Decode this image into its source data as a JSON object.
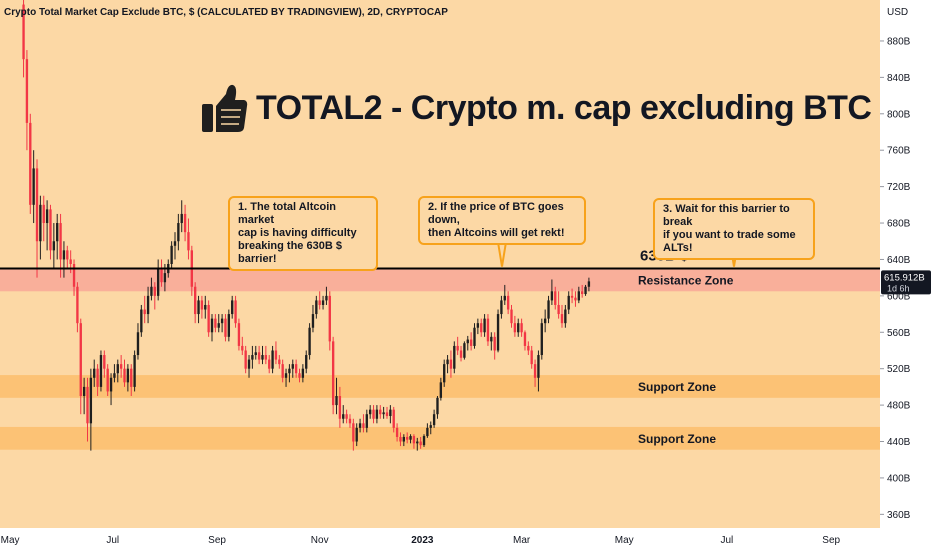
{
  "header": {
    "symbol_line": "Crypto Total Market Cap Exclude BTC, $ (CALCULATED BY TRADINGVIEW), 2D, CRYPTOCAP"
  },
  "headline": {
    "icon": "thumbs-up-icon",
    "text": "TOTAL2 - Crypto m. cap excluding BTC"
  },
  "callouts": [
    {
      "text": "1. The total Altcoin market\ncap is having difficulty\nbreaking the 630B $ barrier!"
    },
    {
      "text": "2. If the price of BTC goes down,\nthen Altcoins will get rekt!"
    },
    {
      "text": "3. Wait for this barrier to break\nif you want to trade some ALTs!"
    }
  ],
  "price_axis": {
    "currency": "USD",
    "last_price": "615.912B",
    "countdown": "1d 6h"
  },
  "colors": {
    "background": "#fcd8a5",
    "resistance_band": "#f8a898",
    "support_band": "#fcbe6c",
    "bull_candle": "#1f1f1f",
    "bear_candle": "#f23645",
    "callout_border": "#f7a21b"
  },
  "chart_data": {
    "type": "candlestick",
    "title": "Crypto Total Market Cap Exclude BTC, $ (CALCULATED BY TRADINGVIEW), 2D, CRYPTOCAP",
    "ylim": [
      345,
      925
    ],
    "y_ticks": [
      {
        "value": 360,
        "label": "360B"
      },
      {
        "value": 400,
        "label": "400B"
      },
      {
        "value": 440,
        "label": "440B"
      },
      {
        "value": 480,
        "label": "480B"
      },
      {
        "value": 520,
        "label": "520B"
      },
      {
        "value": 560,
        "label": "560B"
      },
      {
        "value": 600,
        "label": "600B"
      },
      {
        "value": 640,
        "label": "640B"
      },
      {
        "value": 680,
        "label": "680B"
      },
      {
        "value": 720,
        "label": "720B"
      },
      {
        "value": 760,
        "label": "760B"
      },
      {
        "value": 800,
        "label": "800B"
      },
      {
        "value": 840,
        "label": "840B"
      },
      {
        "value": 880,
        "label": "880B"
      }
    ],
    "x_ticks": [
      {
        "date": "2022-05-01",
        "label": "May",
        "bold": false
      },
      {
        "date": "2022-07-01",
        "label": "Jul",
        "bold": false
      },
      {
        "date": "2022-09-01",
        "label": "Sep",
        "bold": false
      },
      {
        "date": "2022-11-01",
        "label": "Nov",
        "bold": false
      },
      {
        "date": "2023-01-01",
        "label": "2023",
        "bold": true
      },
      {
        "date": "2023-03-01",
        "label": "Mar",
        "bold": false
      },
      {
        "date": "2023-05-01",
        "label": "May",
        "bold": false
      },
      {
        "date": "2023-07-01",
        "label": "Jul",
        "bold": false
      },
      {
        "date": "2023-09-01",
        "label": "Sep",
        "bold": false
      }
    ],
    "xlim": [
      "2022-04-25",
      "2023-09-30"
    ],
    "resistance_line": {
      "value": 630,
      "label": "630B $"
    },
    "zones": [
      {
        "name": "Resistance Zone",
        "low": 605,
        "high": 630,
        "kind": "resistance"
      },
      {
        "name": "Support Zone",
        "low": 488,
        "high": 513,
        "kind": "support"
      },
      {
        "name": "Support Zone",
        "low": 431,
        "high": 456,
        "kind": "support"
      }
    ],
    "last_price": 615.912,
    "candles": [
      [
        "2022-05-09",
        920,
        925,
        840,
        860
      ],
      [
        "2022-05-11",
        860,
        870,
        760,
        790
      ],
      [
        "2022-05-13",
        790,
        800,
        690,
        700
      ],
      [
        "2022-05-15",
        700,
        760,
        680,
        740
      ],
      [
        "2022-05-17",
        740,
        750,
        620,
        660
      ],
      [
        "2022-05-19",
        660,
        710,
        640,
        700
      ],
      [
        "2022-05-21",
        700,
        710,
        660,
        680
      ],
      [
        "2022-05-23",
        680,
        705,
        650,
        695
      ],
      [
        "2022-05-25",
        695,
        700,
        640,
        650
      ],
      [
        "2022-05-27",
        650,
        680,
        630,
        660
      ],
      [
        "2022-05-29",
        660,
        690,
        640,
        680
      ],
      [
        "2022-05-31",
        680,
        690,
        620,
        640
      ],
      [
        "2022-06-02",
        640,
        660,
        620,
        650
      ],
      [
        "2022-06-04",
        650,
        655,
        630,
        640
      ],
      [
        "2022-06-06",
        640,
        650,
        625,
        635
      ],
      [
        "2022-06-08",
        635,
        640,
        600,
        610
      ],
      [
        "2022-06-10",
        610,
        615,
        560,
        570
      ],
      [
        "2022-06-12",
        570,
        575,
        470,
        490
      ],
      [
        "2022-06-14",
        490,
        510,
        470,
        500
      ],
      [
        "2022-06-16",
        500,
        510,
        440,
        460
      ],
      [
        "2022-06-18",
        460,
        520,
        430,
        510
      ],
      [
        "2022-06-20",
        510,
        530,
        500,
        520
      ],
      [
        "2022-06-22",
        520,
        525,
        490,
        500
      ],
      [
        "2022-06-24",
        500,
        540,
        495,
        535
      ],
      [
        "2022-06-26",
        535,
        540,
        510,
        520
      ],
      [
        "2022-06-28",
        520,
        525,
        490,
        495
      ],
      [
        "2022-06-30",
        495,
        515,
        480,
        510
      ],
      [
        "2022-07-02",
        510,
        525,
        505,
        515
      ],
      [
        "2022-07-04",
        515,
        530,
        505,
        525
      ],
      [
        "2022-07-06",
        525,
        535,
        510,
        520
      ],
      [
        "2022-07-08",
        520,
        530,
        500,
        505
      ],
      [
        "2022-07-10",
        505,
        525,
        495,
        520
      ],
      [
        "2022-07-12",
        520,
        525,
        490,
        500
      ],
      [
        "2022-07-14",
        500,
        540,
        495,
        535
      ],
      [
        "2022-07-16",
        535,
        570,
        530,
        560
      ],
      [
        "2022-07-18",
        560,
        590,
        555,
        585
      ],
      [
        "2022-07-20",
        585,
        600,
        570,
        580
      ],
      [
        "2022-07-22",
        580,
        610,
        570,
        600
      ],
      [
        "2022-07-24",
        600,
        620,
        595,
        610
      ],
      [
        "2022-07-26",
        610,
        615,
        585,
        600
      ],
      [
        "2022-07-28",
        600,
        640,
        595,
        630
      ],
      [
        "2022-07-30",
        630,
        640,
        610,
        615
      ],
      [
        "2022-08-01",
        615,
        635,
        605,
        625
      ],
      [
        "2022-08-03",
        625,
        640,
        620,
        635
      ],
      [
        "2022-08-05",
        635,
        660,
        630,
        655
      ],
      [
        "2022-08-07",
        655,
        670,
        640,
        660
      ],
      [
        "2022-08-09",
        660,
        690,
        650,
        680
      ],
      [
        "2022-08-11",
        680,
        705,
        670,
        690
      ],
      [
        "2022-08-13",
        690,
        700,
        660,
        670
      ],
      [
        "2022-08-15",
        670,
        685,
        640,
        650
      ],
      [
        "2022-08-17",
        650,
        655,
        600,
        610
      ],
      [
        "2022-08-19",
        610,
        615,
        570,
        580
      ],
      [
        "2022-08-21",
        580,
        600,
        570,
        595
      ],
      [
        "2022-08-23",
        595,
        600,
        575,
        585
      ],
      [
        "2022-08-25",
        585,
        600,
        575,
        590
      ],
      [
        "2022-08-27",
        590,
        595,
        555,
        560
      ],
      [
        "2022-08-29",
        560,
        580,
        550,
        575
      ],
      [
        "2022-08-31",
        575,
        580,
        560,
        565
      ],
      [
        "2022-09-02",
        565,
        580,
        560,
        570
      ],
      [
        "2022-09-04",
        570,
        580,
        560,
        575
      ],
      [
        "2022-09-06",
        575,
        580,
        550,
        555
      ],
      [
        "2022-09-08",
        555,
        585,
        550,
        580
      ],
      [
        "2022-09-10",
        580,
        600,
        575,
        595
      ],
      [
        "2022-09-12",
        595,
        600,
        565,
        570
      ],
      [
        "2022-09-14",
        570,
        575,
        540,
        545
      ],
      [
        "2022-09-16",
        545,
        555,
        535,
        540
      ],
      [
        "2022-09-18",
        540,
        545,
        515,
        520
      ],
      [
        "2022-09-20",
        520,
        535,
        510,
        530
      ],
      [
        "2022-09-22",
        530,
        545,
        520,
        535
      ],
      [
        "2022-09-24",
        535,
        545,
        530,
        538
      ],
      [
        "2022-09-26",
        538,
        545,
        525,
        530
      ],
      [
        "2022-09-28",
        530,
        545,
        525,
        535
      ],
      [
        "2022-09-30",
        535,
        545,
        525,
        530
      ],
      [
        "2022-10-02",
        530,
        535,
        515,
        520
      ],
      [
        "2022-10-04",
        520,
        545,
        515,
        540
      ],
      [
        "2022-10-06",
        540,
        550,
        525,
        530
      ],
      [
        "2022-10-08",
        530,
        535,
        520,
        525
      ],
      [
        "2022-10-10",
        525,
        530,
        505,
        510
      ],
      [
        "2022-10-12",
        510,
        520,
        500,
        515
      ],
      [
        "2022-10-14",
        515,
        525,
        505,
        520
      ],
      [
        "2022-10-16",
        520,
        530,
        510,
        525
      ],
      [
        "2022-10-18",
        525,
        530,
        510,
        515
      ],
      [
        "2022-10-20",
        515,
        520,
        505,
        510
      ],
      [
        "2022-10-22",
        510,
        525,
        505,
        520
      ],
      [
        "2022-10-24",
        520,
        540,
        515,
        535
      ],
      [
        "2022-10-26",
        535,
        570,
        530,
        565
      ],
      [
        "2022-10-28",
        565,
        590,
        560,
        580
      ],
      [
        "2022-10-30",
        580,
        600,
        575,
        595
      ],
      [
        "2022-11-01",
        595,
        605,
        585,
        590
      ],
      [
        "2022-11-03",
        590,
        600,
        585,
        595
      ],
      [
        "2022-11-05",
        595,
        610,
        590,
        600
      ],
      [
        "2022-11-07",
        600,
        605,
        540,
        550
      ],
      [
        "2022-11-09",
        550,
        555,
        470,
        480
      ],
      [
        "2022-11-11",
        480,
        510,
        470,
        490
      ],
      [
        "2022-11-13",
        490,
        500,
        455,
        465
      ],
      [
        "2022-11-15",
        465,
        480,
        460,
        470
      ],
      [
        "2022-11-17",
        470,
        475,
        460,
        465
      ],
      [
        "2022-11-19",
        465,
        470,
        455,
        460
      ],
      [
        "2022-11-21",
        460,
        465,
        430,
        440
      ],
      [
        "2022-11-23",
        440,
        460,
        435,
        455
      ],
      [
        "2022-11-25",
        455,
        465,
        450,
        460
      ],
      [
        "2022-11-27",
        460,
        470,
        450,
        455
      ],
      [
        "2022-11-29",
        455,
        475,
        450,
        470
      ],
      [
        "2022-12-01",
        470,
        480,
        465,
        475
      ],
      [
        "2022-12-03",
        475,
        480,
        460,
        465
      ],
      [
        "2022-12-05",
        465,
        480,
        460,
        475
      ],
      [
        "2022-12-07",
        475,
        480,
        465,
        470
      ],
      [
        "2022-12-09",
        470,
        478,
        465,
        472
      ],
      [
        "2022-12-11",
        472,
        478,
        465,
        468
      ],
      [
        "2022-12-13",
        468,
        480,
        460,
        475
      ],
      [
        "2022-12-15",
        475,
        478,
        450,
        455
      ],
      [
        "2022-12-17",
        455,
        460,
        440,
        445
      ],
      [
        "2022-12-19",
        445,
        450,
        435,
        440
      ],
      [
        "2022-12-21",
        440,
        448,
        435,
        445
      ],
      [
        "2022-12-23",
        445,
        450,
        438,
        442
      ],
      [
        "2022-12-25",
        442,
        448,
        438,
        446
      ],
      [
        "2022-12-27",
        446,
        448,
        432,
        438
      ],
      [
        "2022-12-29",
        438,
        444,
        430,
        440
      ],
      [
        "2022-12-31",
        440,
        445,
        432,
        436
      ],
      [
        "2023-01-02",
        436,
        448,
        434,
        446
      ],
      [
        "2023-01-04",
        446,
        460,
        444,
        455
      ],
      [
        "2023-01-06",
        455,
        462,
        448,
        458
      ],
      [
        "2023-01-08",
        458,
        475,
        455,
        470
      ],
      [
        "2023-01-10",
        470,
        490,
        465,
        488
      ],
      [
        "2023-01-12",
        488,
        510,
        485,
        505
      ],
      [
        "2023-01-14",
        505,
        530,
        500,
        525
      ],
      [
        "2023-01-16",
        525,
        535,
        515,
        530
      ],
      [
        "2023-01-18",
        530,
        540,
        510,
        520
      ],
      [
        "2023-01-20",
        520,
        550,
        515,
        545
      ],
      [
        "2023-01-22",
        545,
        555,
        535,
        540
      ],
      [
        "2023-01-24",
        540,
        545,
        528,
        532
      ],
      [
        "2023-01-26",
        532,
        550,
        530,
        548
      ],
      [
        "2023-01-28",
        548,
        556,
        540,
        552
      ],
      [
        "2023-01-30",
        552,
        560,
        540,
        545
      ],
      [
        "2023-02-01",
        545,
        570,
        542,
        565
      ],
      [
        "2023-02-03",
        565,
        575,
        558,
        570
      ],
      [
        "2023-02-05",
        570,
        575,
        555,
        560
      ],
      [
        "2023-02-07",
        560,
        580,
        555,
        575
      ],
      [
        "2023-02-09",
        575,
        580,
        545,
        550
      ],
      [
        "2023-02-11",
        550,
        560,
        540,
        555
      ],
      [
        "2023-02-13",
        555,
        560,
        530,
        540
      ],
      [
        "2023-02-15",
        540,
        585,
        538,
        580
      ],
      [
        "2023-02-17",
        580,
        600,
        575,
        595
      ],
      [
        "2023-02-19",
        595,
        612,
        590,
        600
      ],
      [
        "2023-02-21",
        600,
        605,
        580,
        585
      ],
      [
        "2023-02-23",
        585,
        590,
        565,
        570
      ],
      [
        "2023-02-25",
        570,
        578,
        555,
        560
      ],
      [
        "2023-02-27",
        560,
        575,
        555,
        570
      ],
      [
        "2023-03-01",
        570,
        575,
        555,
        560
      ],
      [
        "2023-03-03",
        560,
        562,
        540,
        545
      ],
      [
        "2023-03-05",
        545,
        550,
        535,
        540
      ],
      [
        "2023-03-07",
        540,
        545,
        520,
        525
      ],
      [
        "2023-03-09",
        525,
        530,
        500,
        510
      ],
      [
        "2023-03-11",
        510,
        540,
        495,
        535
      ],
      [
        "2023-03-13",
        535,
        575,
        530,
        570
      ],
      [
        "2023-03-15",
        570,
        585,
        560,
        575
      ],
      [
        "2023-03-17",
        575,
        600,
        570,
        595
      ],
      [
        "2023-03-19",
        595,
        618,
        590,
        605
      ],
      [
        "2023-03-21",
        605,
        610,
        585,
        590
      ],
      [
        "2023-03-23",
        590,
        605,
        575,
        580
      ],
      [
        "2023-03-25",
        580,
        590,
        565,
        570
      ],
      [
        "2023-03-27",
        570,
        590,
        565,
        585
      ],
      [
        "2023-03-29",
        585,
        605,
        580,
        600
      ],
      [
        "2023-03-31",
        600,
        608,
        592,
        598
      ],
      [
        "2023-04-02",
        598,
        605,
        588,
        595
      ],
      [
        "2023-04-04",
        595,
        610,
        592,
        605
      ],
      [
        "2023-04-06",
        605,
        612,
        598,
        602
      ],
      [
        "2023-04-08",
        602,
        612,
        600,
        610
      ],
      [
        "2023-04-10",
        610,
        620,
        605,
        615.912
      ]
    ]
  }
}
